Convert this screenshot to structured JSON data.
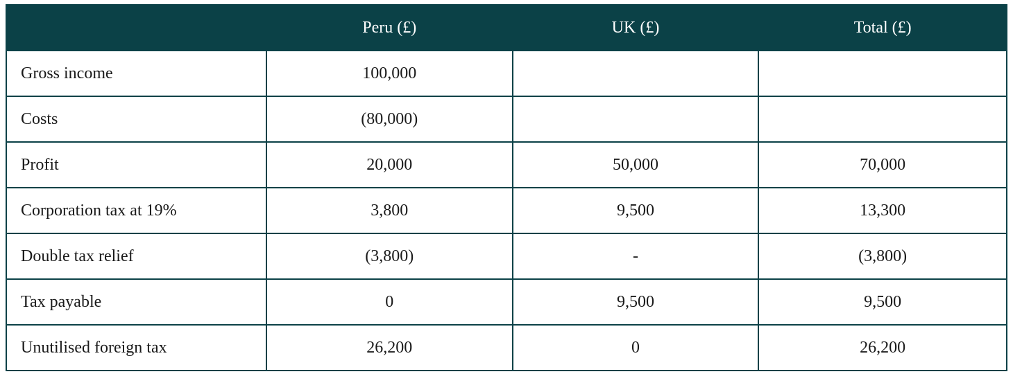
{
  "table": {
    "type": "table",
    "header_bg": "#0b4147",
    "header_color": "#ffffff",
    "border_color": "#0b4147",
    "cell_bg": "#ffffff",
    "text_color": "#1a1a1a",
    "font_family": "Georgia, serif",
    "font_size_pt": 18,
    "columns": [
      {
        "label": "",
        "align": "left",
        "width_pct": 26
      },
      {
        "label": "Peru (£)",
        "align": "center",
        "width_pct": 24.6
      },
      {
        "label": "UK (£)",
        "align": "center",
        "width_pct": 24.6
      },
      {
        "label": "Total (£)",
        "align": "center",
        "width_pct": 24.8
      }
    ],
    "rows": [
      {
        "label": "Gross income",
        "peru": "100,000",
        "uk": "",
        "total": ""
      },
      {
        "label": "Costs",
        "peru": "(80,000)",
        "uk": "",
        "total": ""
      },
      {
        "label": "Profit",
        "peru": "20,000",
        "uk": "50,000",
        "total": "70,000"
      },
      {
        "label": "Corporation tax at 19%",
        "peru": "3,800",
        "uk": "9,500",
        "total": "13,300"
      },
      {
        "label": "Double tax relief",
        "peru": "(3,800)",
        "uk": "-",
        "total": "(3,800)"
      },
      {
        "label": "Tax payable",
        "peru": "0",
        "uk": "9,500",
        "total": "9,500"
      },
      {
        "label": "Unutilised foreign tax",
        "peru": "26,200",
        "uk": "0",
        "total": "26,200"
      }
    ]
  }
}
